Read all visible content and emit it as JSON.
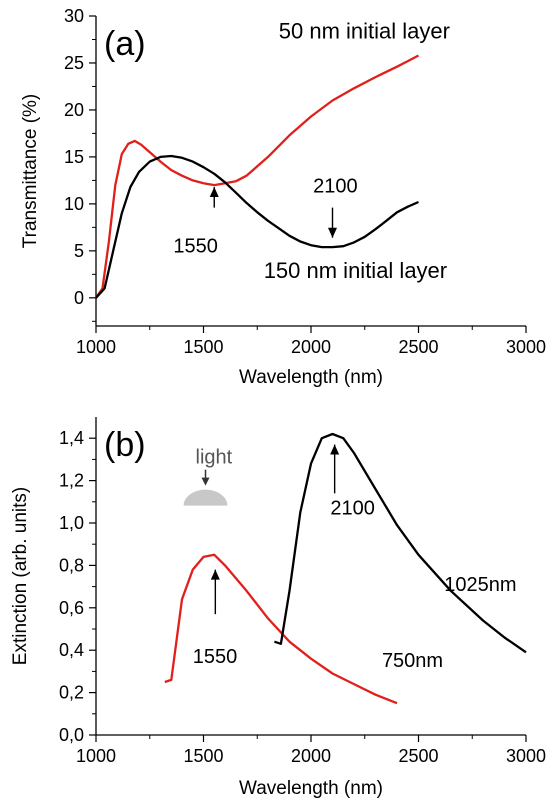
{
  "chart_data": [
    {
      "type": "line",
      "panel_label": "(a)",
      "xlabel": "Wavelength (nm)",
      "ylabel": "Transmittance (%)",
      "xlim": [
        1000,
        3000
      ],
      "ylim": [
        -3,
        30
      ],
      "xticks": [
        1000,
        1500,
        2000,
        2500,
        3000
      ],
      "xtick_labels": [
        "1000",
        "1500",
        "2000",
        "2500",
        "3000"
      ],
      "yticks": [
        0,
        5,
        10,
        15,
        20,
        25,
        30
      ],
      "ytick_labels": [
        "0",
        "5",
        "10",
        "15",
        "20",
        "25",
        "30"
      ],
      "grid": false,
      "series": [
        {
          "color": "#e0201b",
          "x": [
            1000,
            1030,
            1060,
            1090,
            1120,
            1150,
            1180,
            1210,
            1250,
            1300,
            1350,
            1400,
            1450,
            1500,
            1550,
            1600,
            1650,
            1700,
            1750,
            1800,
            1900,
            2000,
            2100,
            2200,
            2300,
            2400,
            2450,
            2500
          ],
          "y": [
            0,
            1,
            6,
            12,
            15.3,
            16.4,
            16.7,
            16.3,
            15.5,
            14.5,
            13.6,
            13,
            12.5,
            12.2,
            12.0,
            12.2,
            12.4,
            13.0,
            14.0,
            15.0,
            17.3,
            19.3,
            21.0,
            22.3,
            23.5,
            24.6,
            25.2,
            25.8
          ]
        },
        {
          "color": "#000000",
          "x": [
            1000,
            1040,
            1080,
            1120,
            1160,
            1200,
            1250,
            1300,
            1350,
            1400,
            1450,
            1500,
            1550,
            1600,
            1650,
            1700,
            1750,
            1800,
            1850,
            1900,
            1950,
            2000,
            2050,
            2100,
            2150,
            2200,
            2250,
            2300,
            2350,
            2400,
            2450,
            2500
          ],
          "y": [
            0,
            1,
            5,
            9,
            11.8,
            13.4,
            14.5,
            15.0,
            15.1,
            14.9,
            14.5,
            13.9,
            13.2,
            12.3,
            11.2,
            10.1,
            9.1,
            8.2,
            7.4,
            6.6,
            6.0,
            5.6,
            5.4,
            5.4,
            5.5,
            5.9,
            6.5,
            7.3,
            8.2,
            9.1,
            9.7,
            10.2
          ]
        }
      ],
      "annotations": [
        {
          "text": "50 nm initial layer",
          "x": 1850,
          "y": 27.6
        },
        {
          "text": "150 nm initial layer",
          "x": 1780,
          "y": 2.1
        },
        {
          "text": "1550",
          "x": 1360,
          "y": 4.8,
          "arrow_from": [
            1550,
            9.6
          ],
          "arrow_to": [
            1550,
            11.8
          ]
        },
        {
          "text": "2100",
          "x": 2010,
          "y": 11.2,
          "arrow_from": [
            2100,
            9.6
          ],
          "arrow_to": [
            2100,
            6.4
          ]
        }
      ]
    },
    {
      "type": "line",
      "panel_label": "(b)",
      "xlabel": "Wavelength (nm)",
      "ylabel": "Extinction (arb. units)",
      "xlim": [
        1000,
        3000
      ],
      "ylim": [
        0,
        1.5
      ],
      "xticks": [
        1000,
        1500,
        2000,
        2500,
        3000
      ],
      "xtick_labels": [
        "1000",
        "1500",
        "2000",
        "2500",
        "3000"
      ],
      "yticks": [
        0,
        0.2,
        0.4,
        0.6,
        0.8,
        1.0,
        1.2,
        1.4
      ],
      "ytick_labels": [
        "0,0",
        "0,2",
        "0,4",
        "0,6",
        "0,8",
        "1,0",
        "1,2",
        "1,4"
      ],
      "grid": false,
      "series": [
        {
          "name": "750nm",
          "color": "#e0201b",
          "x": [
            1320,
            1350,
            1400,
            1450,
            1500,
            1550,
            1600,
            1700,
            1800,
            1900,
            2000,
            2100,
            2200,
            2300,
            2400
          ],
          "y": [
            0.25,
            0.26,
            0.64,
            0.78,
            0.84,
            0.85,
            0.8,
            0.68,
            0.55,
            0.44,
            0.36,
            0.29,
            0.24,
            0.19,
            0.15
          ]
        },
        {
          "name": "1025nm",
          "color": "#000000",
          "x": [
            1830,
            1860,
            1900,
            1950,
            2000,
            2050,
            2100,
            2150,
            2200,
            2300,
            2400,
            2500,
            2650,
            2800,
            2900,
            3000
          ],
          "y": [
            0.44,
            0.43,
            0.68,
            1.05,
            1.28,
            1.4,
            1.42,
            1.4,
            1.33,
            1.16,
            0.99,
            0.85,
            0.68,
            0.54,
            0.46,
            0.39
          ]
        }
      ],
      "annotations": [
        {
          "text": "1550",
          "x": 1450,
          "y": 0.34,
          "arrow_from": [
            1555,
            0.57
          ],
          "arrow_to": [
            1555,
            0.78
          ]
        },
        {
          "text": "2100",
          "x": 2090,
          "y": 1.04,
          "arrow_from": [
            2110,
            1.14
          ],
          "arrow_to": [
            2110,
            1.37
          ]
        },
        {
          "text": "1025nm",
          "x": 2620,
          "y": 0.68
        },
        {
          "text": "750nm",
          "x": 2330,
          "y": 0.32
        },
        {
          "text": "light",
          "x": 1500,
          "y": 1.28
        }
      ]
    }
  ]
}
